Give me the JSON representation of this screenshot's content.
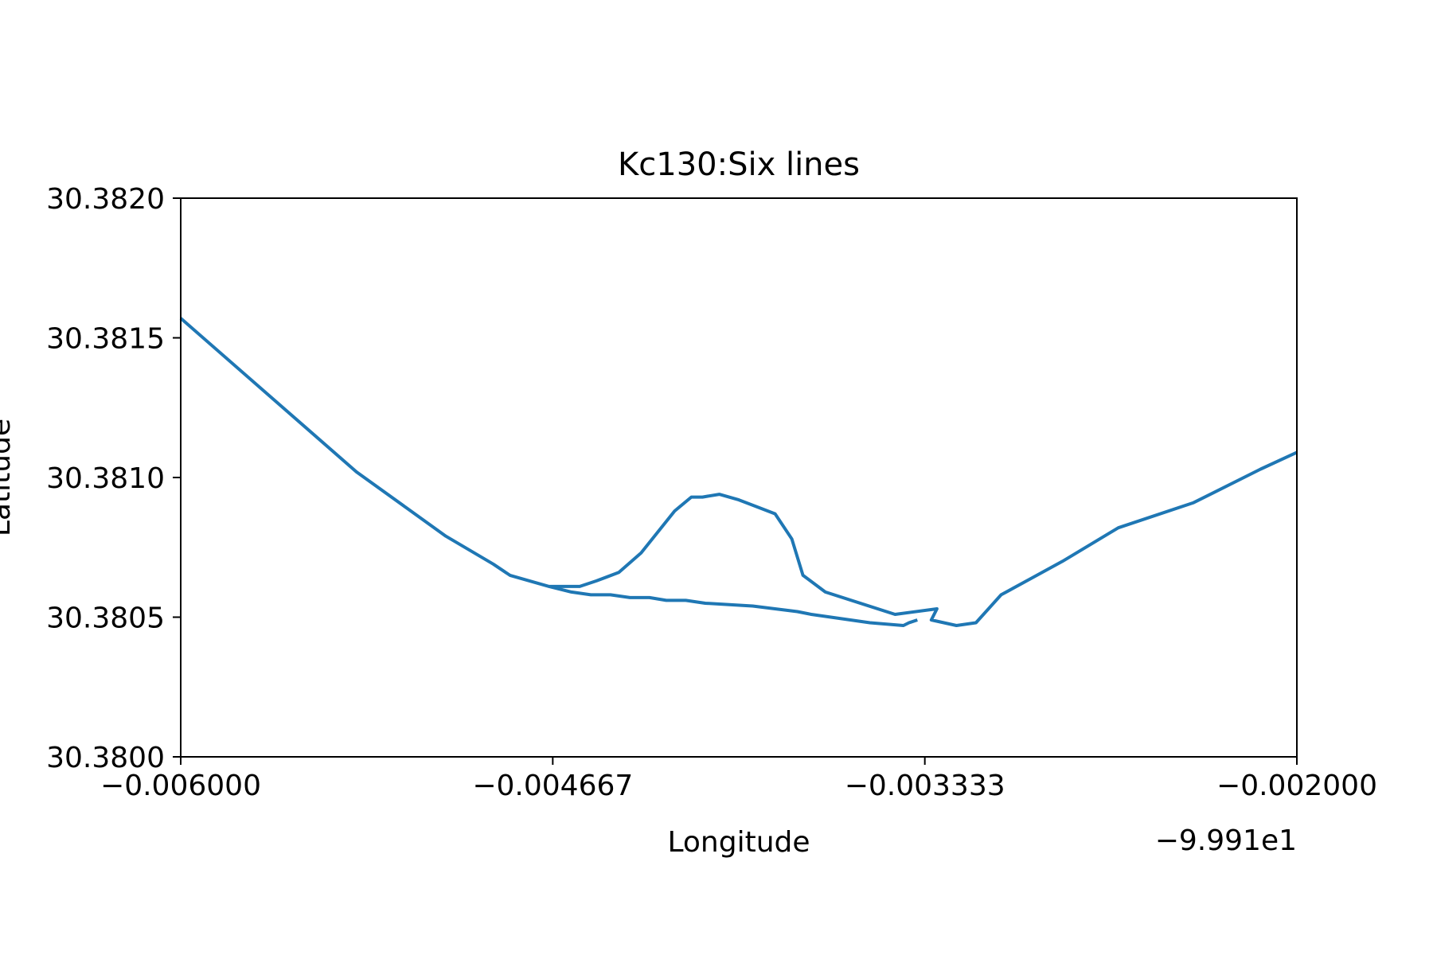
{
  "chart_data": {
    "type": "line",
    "title": "Kc130:Six lines",
    "xlabel": "Longitude",
    "ylabel": "Latitude",
    "x_offset_label": "−9.991e1",
    "xlim": [
      -0.006,
      -0.002
    ],
    "ylim": [
      30.38,
      30.382
    ],
    "x_ticks": [
      {
        "value": -0.006,
        "label": "−0.006000"
      },
      {
        "value": -0.0046667,
        "label": "−0.004667"
      },
      {
        "value": -0.0033333,
        "label": "−0.003333"
      },
      {
        "value": -0.002,
        "label": "−0.002000"
      }
    ],
    "y_ticks": [
      {
        "value": 30.38,
        "label": "30.3800"
      },
      {
        "value": 30.3805,
        "label": "30.3805"
      },
      {
        "value": 30.381,
        "label": "30.3810"
      },
      {
        "value": 30.3815,
        "label": "30.3815"
      },
      {
        "value": 30.382,
        "label": "30.3820"
      }
    ],
    "grid": false,
    "series": [
      {
        "color": "#1f77b4",
        "x": [
          -0.006,
          -0.00537,
          -0.00505,
          -0.00488,
          -0.00482,
          -0.00475,
          -0.00468,
          -0.0046,
          -0.00457,
          -0.00451,
          -0.00443,
          -0.00435,
          -0.00423,
          -0.00417,
          -0.00413,
          -0.00407,
          -0.004,
          -0.00387,
          -0.00381,
          -0.00377,
          -0.00369,
          -0.00344,
          -0.00329,
          -0.00331,
          -0.00322,
          -0.00315,
          -0.00306,
          -0.00295,
          -0.00284,
          -0.00264,
          -0.00237,
          -0.00213,
          -0.002
        ],
        "y": [
          30.38157,
          30.38102,
          30.38079,
          30.38069,
          30.38065,
          30.38063,
          30.38061,
          30.38061,
          30.38061,
          30.38063,
          30.38066,
          30.38073,
          30.38088,
          30.38093,
          30.38093,
          30.38094,
          30.38092,
          30.38087,
          30.38078,
          30.38065,
          30.38059,
          30.38051,
          30.38053,
          30.38049,
          30.38047,
          30.38048,
          30.38058,
          30.38064,
          30.3807,
          30.38082,
          30.38091,
          30.38103,
          30.38109
        ]
      },
      {
        "color": "#1f77b4",
        "x": [
          -0.00468,
          -0.0046,
          -0.00453,
          -0.00446,
          -0.00439,
          -0.00432,
          -0.00426,
          -0.00419,
          -0.00412,
          -0.00395,
          -0.00379,
          -0.00374,
          -0.0036,
          -0.00353,
          -0.00341,
          -0.00339,
          -0.00336
        ],
        "y": [
          30.38061,
          30.38059,
          30.38058,
          30.38058,
          30.38057,
          30.38057,
          30.38056,
          30.38056,
          30.38055,
          30.38054,
          30.38052,
          30.38051,
          30.38049,
          30.38048,
          30.38047,
          30.38048,
          30.38049
        ]
      }
    ]
  }
}
